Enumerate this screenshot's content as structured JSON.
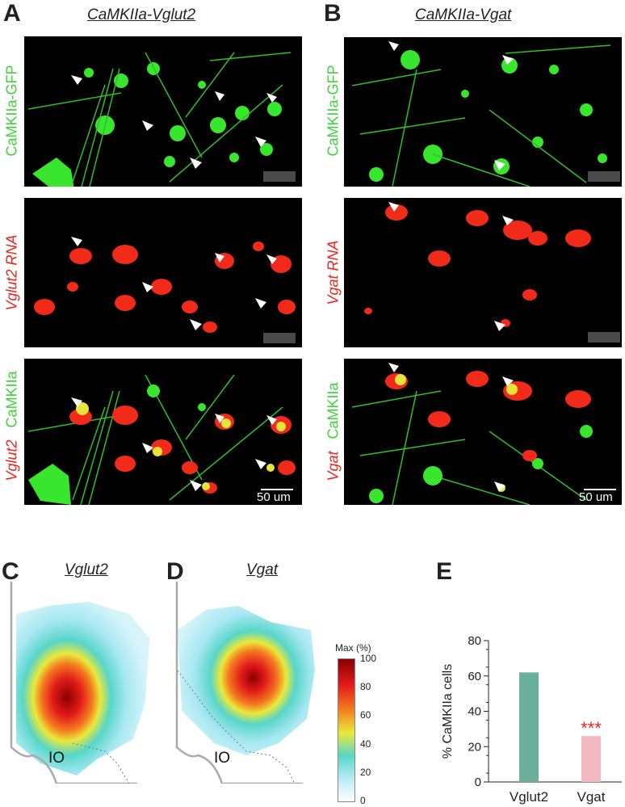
{
  "panelA": {
    "letter": "A",
    "title": "CaMKIIa-Vglut2",
    "row1_label": "CaMKIIa-GFP",
    "row2_label": "Vglut2 RNA",
    "row3_label_green": "CaMKIIa",
    "row3_label_red": "Vglut2",
    "scale_text": "50 um"
  },
  "panelB": {
    "letter": "B",
    "title": "CaMKIIa-Vgat",
    "row1_label": "CaMKIIa-GFP",
    "row2_label": "Vgat RNA",
    "row3_label_green": "CaMKIIa",
    "row3_label_red": "Vgat",
    "scale_text": "50 um"
  },
  "panelC": {
    "letter": "C",
    "title": "Vglut2",
    "region_label": "IO"
  },
  "panelD": {
    "letter": "D",
    "title": "Vgat",
    "region_label": "IO"
  },
  "colorbar": {
    "title": "Max (%)",
    "ticks": [
      "100",
      "80",
      "60",
      "40",
      "20",
      "0"
    ],
    "colors": [
      "#8b0000",
      "#e21a1a",
      "#f47a1f",
      "#e9e93a",
      "#58d6c8",
      "#b7ecf5",
      "#ffffff"
    ]
  },
  "panelE": {
    "letter": "E",
    "significance": "***"
  },
  "chart_data": {
    "type": "bar",
    "categories": [
      "Vglut2",
      "Vgat"
    ],
    "values": [
      62,
      26
    ],
    "colors": [
      "#6bb09a",
      "#f2b9c1"
    ],
    "ylabel": "% CaMKIIa cells",
    "ylim": [
      0,
      80
    ],
    "yticks": [
      0,
      20,
      40,
      60,
      80
    ],
    "xlabel": ""
  }
}
